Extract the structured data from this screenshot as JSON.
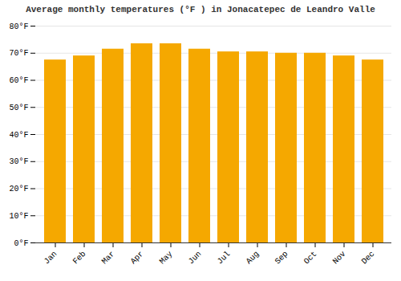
{
  "chart_data": {
    "type": "bar",
    "title": "Average monthly temperatures (°F ) in Jonacatepec de Leandro Valle",
    "categories": [
      "Jan",
      "Feb",
      "Mar",
      "Apr",
      "May",
      "Jun",
      "Jul",
      "Aug",
      "Sep",
      "Oct",
      "Nov",
      "Dec"
    ],
    "values": [
      67.5,
      69.0,
      71.5,
      73.5,
      73.5,
      71.5,
      70.5,
      70.5,
      70.0,
      70.0,
      69.0,
      67.5
    ],
    "color": "#F5A800",
    "ylim": [
      0,
      80
    ],
    "yticks": [
      {
        "value": 0,
        "label": "0°F"
      },
      {
        "value": 10,
        "label": "10°F"
      },
      {
        "value": 20,
        "label": "20°F"
      },
      {
        "value": 30,
        "label": "30°F"
      },
      {
        "value": 40,
        "label": "40°F"
      },
      {
        "value": 50,
        "label": "50°F"
      },
      {
        "value": 60,
        "label": "60°F"
      },
      {
        "value": 70,
        "label": "70°F"
      },
      {
        "value": 80,
        "label": "80°F"
      }
    ],
    "grid": true
  }
}
